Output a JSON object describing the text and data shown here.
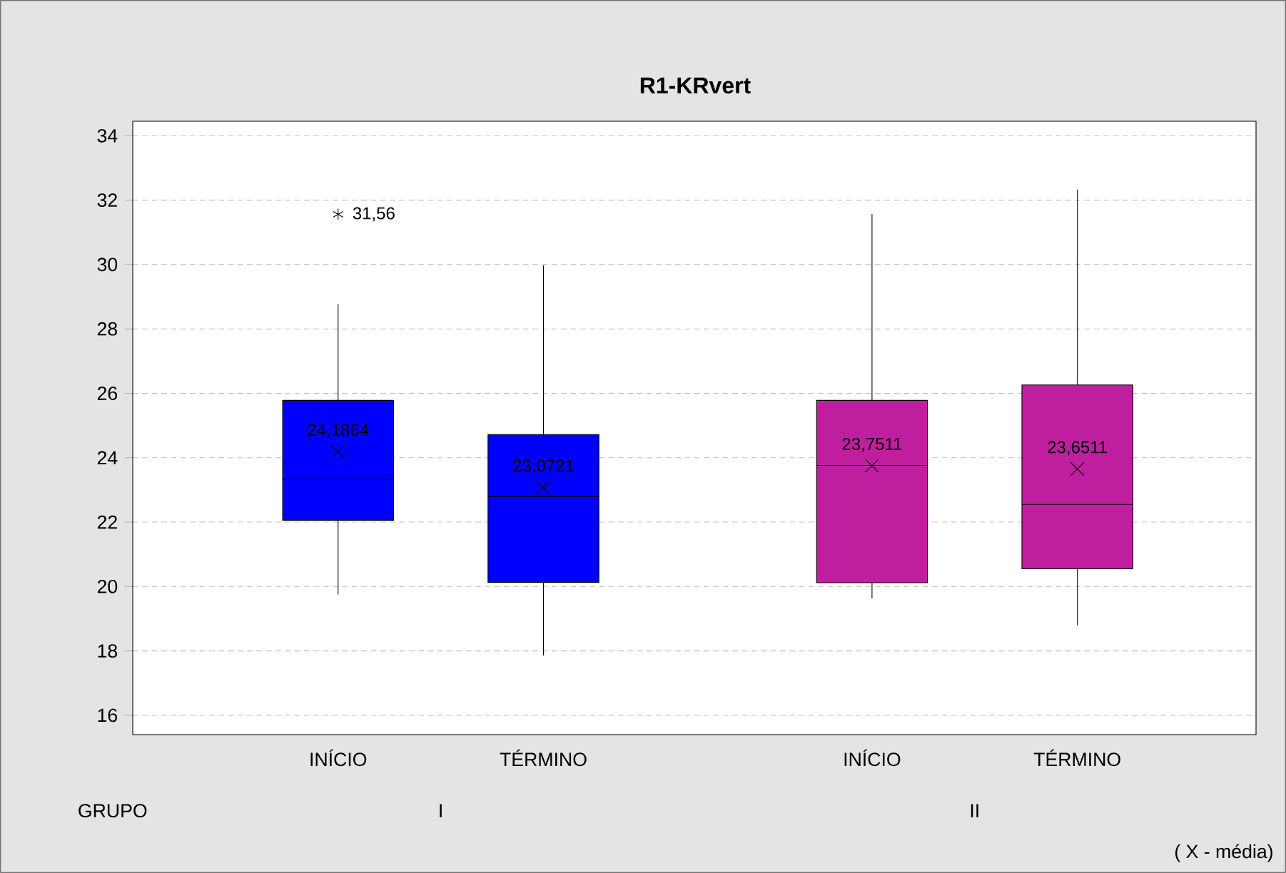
{
  "chart_data": {
    "type": "box",
    "title": "R1-KRvert",
    "xlabel": "GRUPO",
    "categories": [
      "INÍCIO",
      "TÉRMINO",
      "INÍCIO",
      "TÉRMINO"
    ],
    "boxes": [
      {
        "low": 19.75,
        "q1": 22.06,
        "median": 23.33,
        "q3": 25.78,
        "high": 28.77,
        "mean": 24.1864,
        "outliers": [
          31.56
        ]
      },
      {
        "low": 17.86,
        "q1": 20.13,
        "median": 22.79,
        "q3": 24.72,
        "high": 29.97,
        "mean": 23.0721
      },
      {
        "low": 19.63,
        "q1": 20.12,
        "median": 23.76,
        "q3": 25.78,
        "high": 31.57,
        "mean": 23.7511
      },
      {
        "low": 18.79,
        "q1": 20.55,
        "median": 22.55,
        "q3": 26.26,
        "high": 32.33,
        "mean": 23.6511
      }
    ],
    "colors": [
      "#0000ff",
      "#0000ff",
      "#bf1f9e",
      "#bf1f9e"
    ],
    "ylim": [
      15.4,
      34.45
    ],
    "yticks": [
      16,
      18,
      20,
      22,
      24,
      26,
      28,
      30,
      32,
      34
    ],
    "grid": "y",
    "annotations": [
      "24,1864",
      "23,0721",
      "23,7511",
      "23,6511",
      "31,56",
      "I",
      "II",
      "( X - média)"
    ]
  }
}
